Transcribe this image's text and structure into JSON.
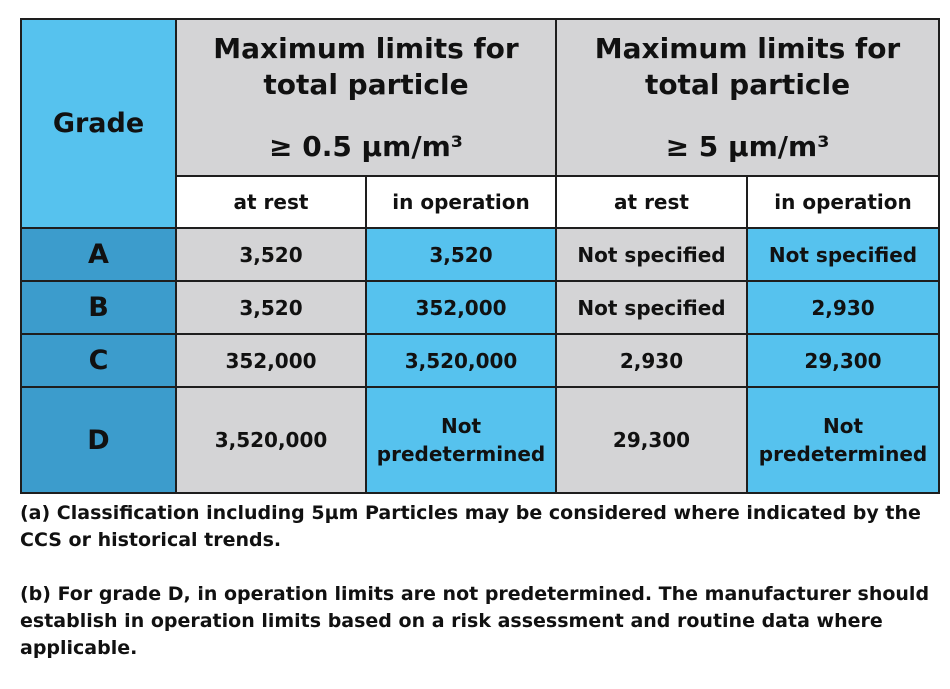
{
  "table": {
    "header": {
      "grade_label": "Grade",
      "group1": {
        "line1": "Maximum limits for",
        "line2": "total particle",
        "size": "≥ 0.5 µm/m³"
      },
      "group2": {
        "line1": "Maximum limits for",
        "line2": "total particle",
        "size": "≥ 5 µm/m³"
      },
      "sub": [
        "at rest",
        "in operation",
        "at rest",
        "in operation"
      ]
    },
    "rows": [
      {
        "grade": "A",
        "c1": "3,520",
        "c2": "3,520",
        "c3": "Not specified",
        "c4": "Not specified"
      },
      {
        "grade": "B",
        "c1": "3,520",
        "c2": "352,000",
        "c3": "Not specified",
        "c4": "2,930"
      },
      {
        "grade": "C",
        "c1": "352,000",
        "c2": "3,520,000",
        "c3": "2,930",
        "c4": "29,300"
      },
      {
        "grade": "D",
        "c1": "3,520,000",
        "c2a": "Not",
        "c2b": "predetermined",
        "c3": "29,300",
        "c4a": "Not",
        "c4b": "predetermined"
      }
    ]
  },
  "notes": {
    "a": "(a) Classification including 5µm Particles may be considered where indicated by the CCS or historical trends.",
    "b": "(b) For grade D, in operation limits are not predetermined. The manufacturer should establish in operation limits based on a risk assessment and routine data where applicable."
  },
  "colors": {
    "header_grey": "#d4d4d6",
    "grade_header_blue": "#56c2ee",
    "grade_row_blue": "#3c9ccc",
    "operation_blue": "#56c2ee",
    "border": "#1e1e1e"
  }
}
